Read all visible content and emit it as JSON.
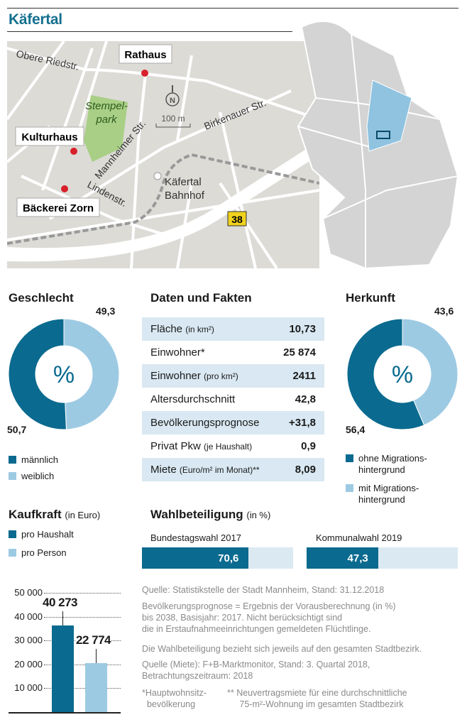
{
  "title": "Käfertal",
  "map": {
    "streets": [
      "Obere Riedstr.",
      "Mannheimer Str.",
      "Birkenauer Str.",
      "Lindenstr."
    ],
    "park": "Stempel-park",
    "park_line1": "Stempel-",
    "park_line2": "park",
    "places": [
      "Rathaus",
      "Kulturhaus",
      "Bäckerei Zorn"
    ],
    "station_line1": "Käfertal",
    "station_line2": "Bahnhof",
    "road_number": "38",
    "compass": "N",
    "scale": "100 m",
    "colors": {
      "land": "#dcdbd6",
      "road": "#ffffff",
      "park": "#a9cf86",
      "marker": "#d8202a",
      "highlight": "#8fc3e0",
      "district": "#d4d4d4"
    }
  },
  "colors": {
    "dark": "#0a6a8f",
    "light": "#9dcae3",
    "row": "#d9e8f2",
    "accent": "#15708f"
  },
  "chart_data": [
    {
      "type": "pie",
      "title": "Geschlecht",
      "center_label": "%",
      "series": [
        {
          "name": "männlich",
          "value": 50.7
        },
        {
          "name": "weiblich",
          "value": 49.3
        }
      ],
      "labels": [
        "50,7",
        "49,3"
      ]
    },
    {
      "type": "pie",
      "title": "Herkunft",
      "center_label": "%",
      "series": [
        {
          "name": "ohne Migrations-hintergrund",
          "value": 56.4
        },
        {
          "name": "mit Migrations-hintergrund",
          "value": 43.6
        }
      ],
      "labels": [
        "56,4",
        "43,6"
      ],
      "legend": [
        "ohne Migrations-",
        "hintergrund",
        "mit Migrations-",
        "hintergrund"
      ]
    },
    {
      "type": "table",
      "title": "Daten und Fakten",
      "rows": [
        {
          "label": "Fläche",
          "unit": "(in km²)",
          "value": "10,73"
        },
        {
          "label": "Einwohner*",
          "unit": "",
          "value": "25 874"
        },
        {
          "label": "Einwohner",
          "unit": "(pro km²)",
          "value": "2411"
        },
        {
          "label": "Altersdurchschnitt",
          "unit": "",
          "value": "42,8"
        },
        {
          "label": "Bevölkerungsprognose",
          "unit": "",
          "value": "+31,8"
        },
        {
          "label": "Privat Pkw",
          "unit": "(je Haushalt)",
          "value": "0,9"
        },
        {
          "label": "Miete",
          "unit": "(Euro/m² im Monat)**",
          "value": "8,09"
        }
      ]
    },
    {
      "type": "bar",
      "title": "Kaufkraft",
      "unit": "(in Euro)",
      "categories": [
        "pro Haushalt",
        "pro Person"
      ],
      "values": [
        40273,
        22774
      ],
      "labels": [
        "40 273",
        "22 774"
      ],
      "ylim": [
        0,
        50000
      ],
      "yticks": [
        "10 000",
        "20 000",
        "30 000",
        "40 000",
        "50 000"
      ],
      "ytick_values": [
        10000,
        20000,
        30000,
        40000,
        50000
      ],
      "grid": true
    },
    {
      "type": "bar",
      "title": "Wahlbeteiligung",
      "unit": "(in %)",
      "categories": [
        "Bundestagswahl 2017",
        "Kommunalwahl 2019"
      ],
      "values": [
        70.6,
        47.3
      ],
      "labels": [
        "70,6",
        "47,3"
      ],
      "ylim": [
        0,
        100
      ]
    }
  ],
  "notes": {
    "source": "Quelle: Statistikstelle der Stadt Mannheim, Stand: 31.12.2018",
    "prognose1": "Bevölkerungsprognose = Ergebnis der Vorausberechnung (in %)",
    "prognose2": "bis 2038, Basisjahr: 2017. Nicht berücksichtigt sind",
    "prognose3": "die in Erstaufnahmeeinrichtungen gemeldeten Flüchtlinge.",
    "wahl": "Die Wahlbeteiligung bezieht sich jeweils auf den gesamten Stadtbezirk.",
    "miete1": "Quelle (Miete): F+B-Marktmonitor, Stand: 3. Quartal 2018,",
    "miete2": "Betrachtungszeitraum: 2018",
    "fn1a": "*Hauptwohnsitz-",
    "fn1b": "bevölkerung",
    "fn2a": "** Neuvertragsmiete für eine durchschnittliche",
    "fn2b": "75-m²-Wohnung im gesamten Stadtbezirk"
  }
}
